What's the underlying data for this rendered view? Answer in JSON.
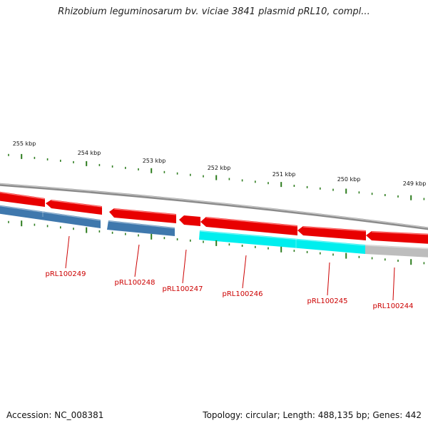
{
  "title": "Rhizobium leguminosarum bv. viciae 3841 plasmid pRL10, compl...",
  "footer": {
    "accession": "Accession: NC_008381",
    "stats": "Topology: circular; Length: 488,135 bp; Genes: 442"
  },
  "colors": {
    "backbone": "#8a8a8a",
    "forward_gene": "#e80000",
    "reverse_cds": "#3f78ad",
    "reverse_cyan": "#00eeee",
    "reverse_gray": "#bdbdbd",
    "tick": "#2e7d1f",
    "label": "#cc0000"
  },
  "scale": [
    {
      "label": "255 kbp"
    },
    {
      "label": "254 kbp"
    },
    {
      "label": "253 kbp"
    },
    {
      "label": "252 kbp"
    },
    {
      "label": "251 kbp"
    },
    {
      "label": "250 kbp"
    },
    {
      "label": "249 kbp"
    }
  ],
  "genes": [
    {
      "label": "pRL100249"
    },
    {
      "label": "pRL100248"
    },
    {
      "label": "pRL100247"
    },
    {
      "label": "pRL100246"
    },
    {
      "label": "pRL100245"
    },
    {
      "label": "pRL100244"
    }
  ]
}
